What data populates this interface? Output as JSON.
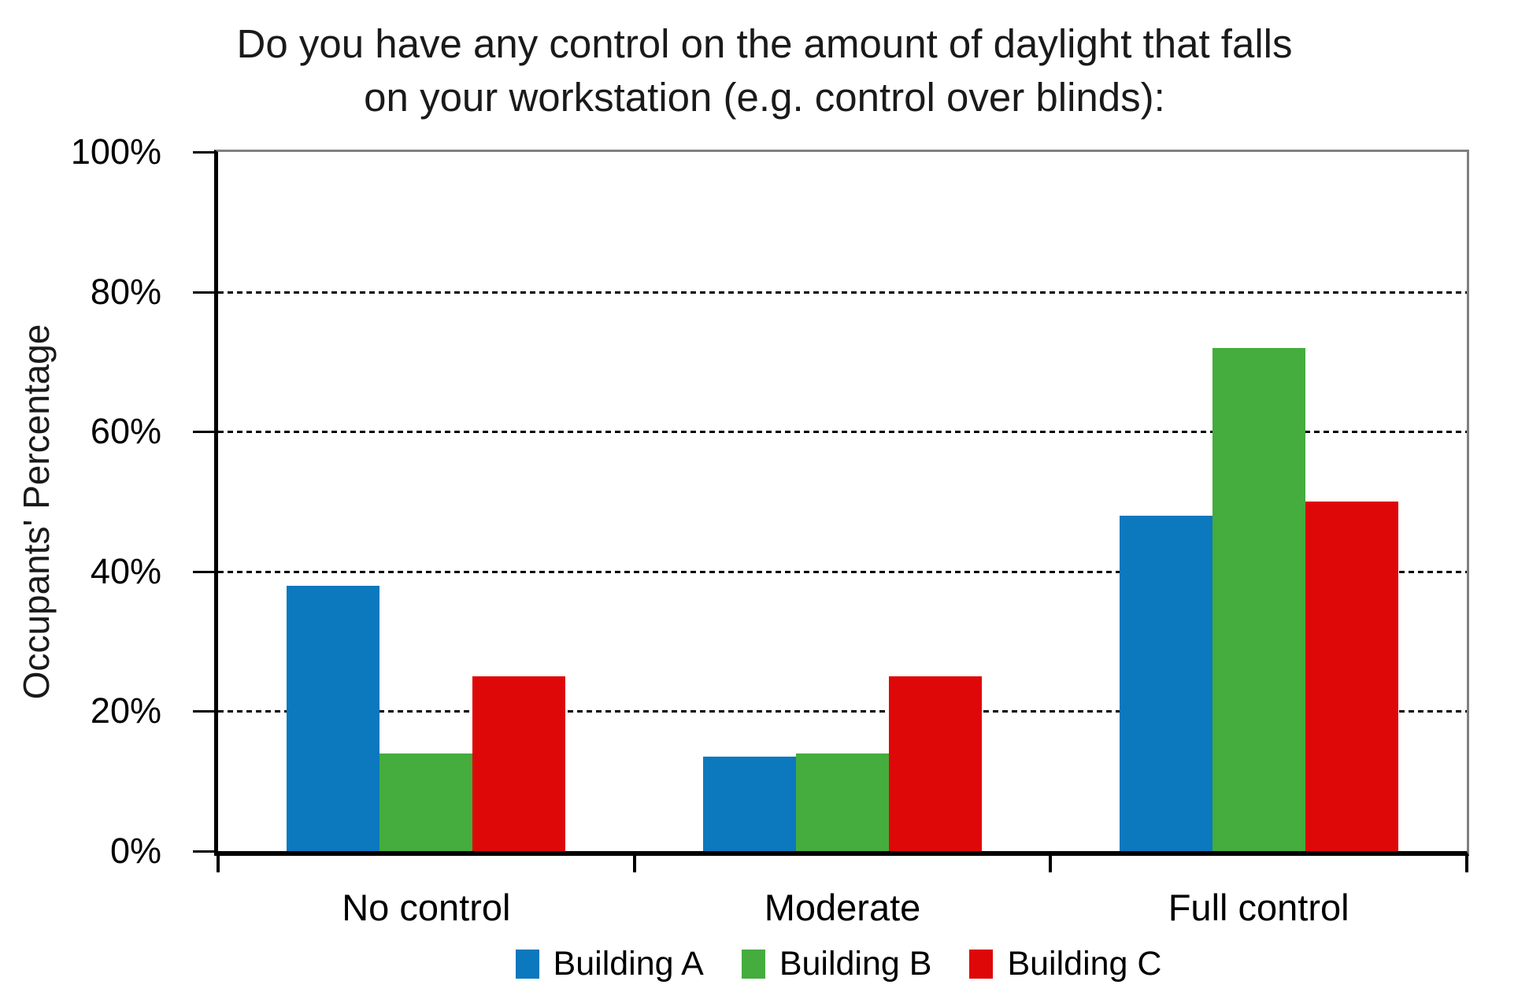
{
  "chart_data": {
    "type": "bar",
    "title_lines": [
      "Do you have any control on the amount of daylight that falls",
      "on your workstation (e.g. control over blinds):"
    ],
    "title": "Do you have any control on the amount of daylight that falls on your workstation (e.g. control over blinds):",
    "xlabel": "",
    "ylabel": "Occupants' Percentage",
    "categories": [
      "No control",
      "Moderate",
      "Full control"
    ],
    "series": [
      {
        "name": "Building A",
        "color": "#0C78BE",
        "values": [
          38,
          13.5,
          48
        ]
      },
      {
        "name": "Building B",
        "color": "#45AC3E",
        "values": [
          14,
          14,
          72
        ]
      },
      {
        "name": "Building C",
        "color": "#DE0808",
        "values": [
          25,
          25,
          50
        ]
      }
    ],
    "ylim": [
      0,
      100
    ],
    "yticks": [
      0,
      20,
      40,
      60,
      80,
      100
    ],
    "ytick_labels": [
      "0%",
      "20%",
      "40%",
      "60%",
      "80%",
      "100%"
    ],
    "grid": "horizontal dashed black at 20% steps",
    "plot_border": "top and right gray, left and bottom black axes",
    "legend_position": "bottom center",
    "axis_color": "#000000",
    "border_gray": "#808080"
  }
}
